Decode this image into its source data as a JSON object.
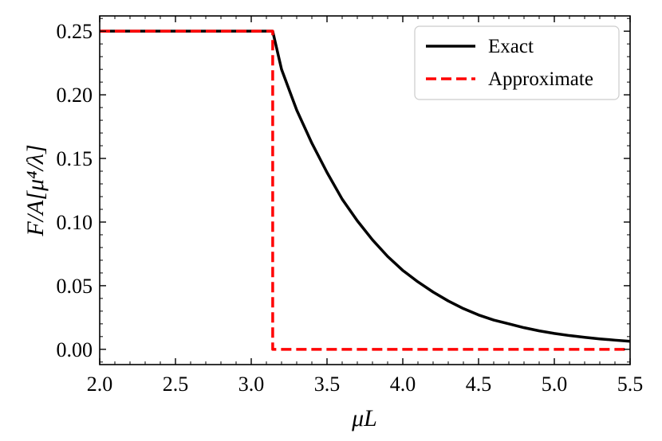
{
  "chart_data": {
    "type": "line",
    "xlabel": "μL",
    "ylabel": "F/A[μ⁴/λ]",
    "xlim": [
      2.0,
      5.5
    ],
    "ylim": [
      -0.012,
      0.262
    ],
    "xticks": [
      2.0,
      2.5,
      3.0,
      3.5,
      4.0,
      4.5,
      5.0,
      5.5
    ],
    "xtick_labels": [
      "2.0",
      "2.5",
      "3.0",
      "3.5",
      "4.0",
      "4.5",
      "5.0",
      "5.5"
    ],
    "yticks": [
      0.0,
      0.05,
      0.1,
      0.15,
      0.2,
      0.25
    ],
    "ytick_labels": [
      "0.00",
      "0.05",
      "0.10",
      "0.15",
      "0.20",
      "0.25"
    ],
    "grid": false,
    "legend_position": "top-right",
    "series": [
      {
        "name": "Exact",
        "color": "#000000",
        "style": "solid",
        "x": [
          2.0,
          3.1416,
          3.2,
          3.3,
          3.4,
          3.5,
          3.6,
          3.7,
          3.8,
          3.9,
          4.0,
          4.1,
          4.2,
          4.3,
          4.4,
          4.5,
          4.6,
          4.7,
          4.8,
          4.9,
          5.0,
          5.1,
          5.2,
          5.3,
          5.4,
          5.5
        ],
        "y": [
          0.25,
          0.25,
          0.22,
          0.188,
          0.162,
          0.139,
          0.118,
          0.101,
          0.086,
          0.073,
          0.062,
          0.053,
          0.045,
          0.038,
          0.032,
          0.027,
          0.023,
          0.02,
          0.017,
          0.0145,
          0.0125,
          0.0108,
          0.0094,
          0.0082,
          0.0072,
          0.0063
        ]
      },
      {
        "name": "Approximate",
        "color": "#ff0000",
        "style": "dashed",
        "x": [
          2.0,
          3.1416,
          3.1416,
          5.5
        ],
        "y": [
          0.25,
          0.25,
          0.0,
          0.0
        ]
      }
    ]
  }
}
